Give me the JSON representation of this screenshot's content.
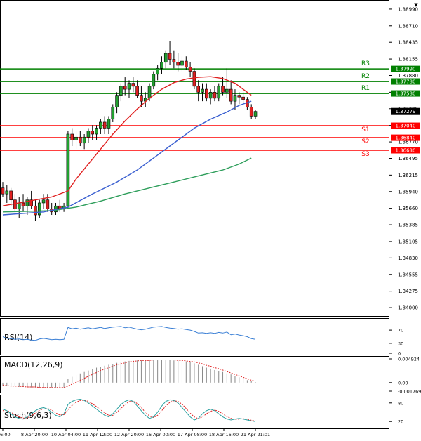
{
  "chart_data": {
    "type": "candlestick",
    "symbol_corner": "▼",
    "price_axis_ticks": [
      "1.38990",
      "1.38710",
      "1.38435",
      "1.38155",
      "1.37880",
      "1.37600",
      "1.37325",
      "1.37045",
      "1.36770",
      "1.36495",
      "1.36215",
      "1.35940",
      "1.35660",
      "1.35385",
      "1.35105",
      "1.34830",
      "1.34555",
      "1.34275",
      "1.34000"
    ],
    "price_axis_range": [
      1.3386,
      1.3913
    ],
    "time_axis_ticks": [
      "6:00",
      "8 Apr 20:00",
      "10 Apr 04:00",
      "11 Apr 12:00",
      "12 Apr 20:00",
      "16 Apr 00:00",
      "17 Apr 08:00",
      "18 Apr 16:00",
      "21 Apr 21:01"
    ],
    "current_price": "1.37279",
    "levels": [
      {
        "name": "R3",
        "value": 1.3799,
        "label": "1.37990",
        "color": "#008000"
      },
      {
        "name": "R2",
        "value": 1.3778,
        "label": "1.37780",
        "color": "#008000"
      },
      {
        "name": "R1",
        "value": 1.3758,
        "label": "1.37580",
        "color": "#008000"
      },
      {
        "name": "S1",
        "value": 1.3704,
        "label": "1.37040",
        "color": "#ff0000"
      },
      {
        "name": "S2",
        "value": 1.3684,
        "label": "1.36840",
        "color": "#ff0000"
      },
      {
        "name": "S3",
        "value": 1.3663,
        "label": "1.36630",
        "color": "#ff0000"
      }
    ],
    "candles": [
      [
        1.36,
        1.361,
        1.3585,
        1.359
      ],
      [
        1.359,
        1.3605,
        1.3575,
        1.3595
      ],
      [
        1.3595,
        1.36,
        1.357,
        1.358
      ],
      [
        1.358,
        1.359,
        1.356,
        1.3565
      ],
      [
        1.3565,
        1.3585,
        1.355,
        1.3575
      ],
      [
        1.3575,
        1.359,
        1.356,
        1.357
      ],
      [
        1.357,
        1.3585,
        1.3555,
        1.358
      ],
      [
        1.358,
        1.3595,
        1.3565,
        1.357
      ],
      [
        1.357,
        1.358,
        1.3545,
        1.3555
      ],
      [
        1.3555,
        1.358,
        1.355,
        1.3575
      ],
      [
        1.3575,
        1.359,
        1.3565,
        1.358
      ],
      [
        1.358,
        1.359,
        1.356,
        1.3565
      ],
      [
        1.3565,
        1.3575,
        1.3555,
        1.356
      ],
      [
        1.356,
        1.3575,
        1.3555,
        1.357
      ],
      [
        1.357,
        1.358,
        1.356,
        1.3565
      ],
      [
        1.3565,
        1.3575,
        1.356,
        1.357
      ],
      [
        1.357,
        1.3695,
        1.3565,
        1.369
      ],
      [
        1.369,
        1.37,
        1.367,
        1.368
      ],
      [
        1.368,
        1.3695,
        1.3665,
        1.3685
      ],
      [
        1.3685,
        1.3695,
        1.367,
        1.3675
      ],
      [
        1.3675,
        1.369,
        1.3665,
        1.3685
      ],
      [
        1.3685,
        1.37,
        1.3675,
        1.3695
      ],
      [
        1.3695,
        1.3705,
        1.368,
        1.369
      ],
      [
        1.369,
        1.3705,
        1.368,
        1.37
      ],
      [
        1.37,
        1.3715,
        1.369,
        1.371
      ],
      [
        1.371,
        1.372,
        1.369,
        1.37
      ],
      [
        1.37,
        1.372,
        1.369,
        1.3715
      ],
      [
        1.3715,
        1.374,
        1.371,
        1.3735
      ],
      [
        1.3735,
        1.376,
        1.3725,
        1.3755
      ],
      [
        1.3755,
        1.3775,
        1.3745,
        1.377
      ],
      [
        1.377,
        1.3785,
        1.3755,
        1.3765
      ],
      [
        1.3765,
        1.378,
        1.375,
        1.3775
      ],
      [
        1.3775,
        1.3785,
        1.376,
        1.377
      ],
      [
        1.377,
        1.378,
        1.375,
        1.3755
      ],
      [
        1.3755,
        1.377,
        1.3735,
        1.3745
      ],
      [
        1.3745,
        1.376,
        1.3735,
        1.375
      ],
      [
        1.375,
        1.3775,
        1.3745,
        1.377
      ],
      [
        1.377,
        1.3795,
        1.3765,
        1.379
      ],
      [
        1.379,
        1.3805,
        1.378,
        1.38
      ],
      [
        1.38,
        1.382,
        1.379,
        1.381
      ],
      [
        1.381,
        1.383,
        1.38,
        1.3825
      ],
      [
        1.3825,
        1.3845,
        1.3805,
        1.3815
      ],
      [
        1.3815,
        1.383,
        1.38,
        1.381
      ],
      [
        1.381,
        1.3825,
        1.3795,
        1.3805
      ],
      [
        1.3805,
        1.382,
        1.3795,
        1.3812
      ],
      [
        1.3812,
        1.382,
        1.3798,
        1.3802
      ],
      [
        1.3802,
        1.381,
        1.3785,
        1.3795
      ],
      [
        1.3795,
        1.38,
        1.3765,
        1.377
      ],
      [
        1.377,
        1.378,
        1.3745,
        1.376
      ],
      [
        1.376,
        1.3775,
        1.3745,
        1.3765
      ],
      [
        1.3765,
        1.3775,
        1.3745,
        1.375
      ],
      [
        1.375,
        1.3765,
        1.374,
        1.376
      ],
      [
        1.376,
        1.377,
        1.3745,
        1.375
      ],
      [
        1.375,
        1.3775,
        1.3745,
        1.377
      ],
      [
        1.377,
        1.3785,
        1.3755,
        1.376
      ],
      [
        1.376,
        1.38,
        1.375,
        1.3765
      ],
      [
        1.3765,
        1.378,
        1.374,
        1.3745
      ],
      [
        1.3745,
        1.3765,
        1.373,
        1.3755
      ],
      [
        1.3755,
        1.376,
        1.374,
        1.3752
      ],
      [
        1.3752,
        1.376,
        1.374,
        1.3748
      ],
      [
        1.3748,
        1.3752,
        1.373,
        1.3735
      ],
      [
        1.3735,
        1.374,
        1.3715,
        1.372
      ],
      [
        1.372,
        1.373,
        1.3715,
        1.3728
      ]
    ],
    "ma_red": [
      [
        1.357,
        0
      ],
      [
        1.3585,
        12
      ],
      [
        1.3595,
        16
      ],
      [
        1.3615,
        18
      ],
      [
        1.364,
        21
      ],
      [
        1.3665,
        24
      ],
      [
        1.369,
        27
      ],
      [
        1.3712,
        30
      ],
      [
        1.3732,
        33
      ],
      [
        1.375,
        36
      ],
      [
        1.3765,
        39
      ],
      [
        1.3776,
        42
      ],
      [
        1.3782,
        45
      ],
      [
        1.3785,
        48
      ],
      [
        1.3786,
        51
      ],
      [
        1.3783,
        54
      ],
      [
        1.3775,
        57
      ],
      [
        1.376,
        60
      ],
      [
        1.3755,
        61
      ]
    ],
    "ma_blue": [
      [
        1.3555,
        0
      ],
      [
        1.356,
        10
      ],
      [
        1.3568,
        16
      ],
      [
        1.359,
        22
      ],
      [
        1.361,
        28
      ],
      [
        1.363,
        33
      ],
      [
        1.3655,
        38
      ],
      [
        1.368,
        43
      ],
      [
        1.37,
        47
      ],
      [
        1.3715,
        51
      ],
      [
        1.3727,
        55
      ],
      [
        1.3738,
        58
      ],
      [
        1.3745,
        61
      ]
    ],
    "ma_green": [
      [
        1.356,
        0
      ],
      [
        1.3562,
        12
      ],
      [
        1.3568,
        18
      ],
      [
        1.3578,
        24
      ],
      [
        1.359,
        30
      ],
      [
        1.36,
        36
      ],
      [
        1.361,
        42
      ],
      [
        1.362,
        48
      ],
      [
        1.363,
        54
      ],
      [
        1.364,
        58
      ],
      [
        1.365,
        61
      ]
    ],
    "rsi": {
      "label": "RSI(14)",
      "ticks": [
        "70",
        "30",
        "0"
      ],
      "range": [
        0,
        100
      ],
      "values": [
        50,
        45,
        44,
        42,
        43,
        41,
        42,
        40,
        39,
        43,
        45,
        43,
        41,
        42,
        41,
        42,
        78,
        74,
        76,
        73,
        75,
        77,
        74,
        76,
        78,
        75,
        77,
        79,
        80,
        81,
        77,
        79,
        76,
        73,
        71,
        73,
        76,
        79,
        80,
        81,
        78,
        76,
        75,
        73,
        74,
        72,
        70,
        66,
        61,
        62,
        60,
        62,
        60,
        63,
        61,
        64,
        56,
        58,
        55,
        53,
        50,
        44,
        42
      ]
    },
    "macd": {
      "label": "MACD(12,26,9)",
      "ticks": [
        "0.004924",
        "0.00",
        "-0.001769"
      ],
      "range": [
        -0.001769,
        0.004924
      ],
      "hist": [
        -0.0006,
        -0.0007,
        -0.0008,
        -0.0008,
        -0.0009,
        -0.0009,
        -0.0009,
        -0.001,
        -0.001,
        -0.001,
        -0.001,
        -0.001,
        -0.001,
        -0.001,
        -0.001,
        -0.001,
        0.0008,
        0.0012,
        0.0016,
        0.0019,
        0.0022,
        0.0025,
        0.0028,
        0.0031,
        0.0033,
        0.0035,
        0.0037,
        0.0039,
        0.0041,
        0.0043,
        0.0044,
        0.0045,
        0.0046,
        0.0046,
        0.0046,
        0.0046,
        0.0046,
        0.0047,
        0.0047,
        0.0047,
        0.0047,
        0.0047,
        0.0046,
        0.0046,
        0.0045,
        0.0044,
        0.0042,
        0.004,
        0.0037,
        0.0034,
        0.0031,
        0.0029,
        0.0026,
        0.0024,
        0.0022,
        0.0019,
        0.0017,
        0.0014,
        0.0011,
        0.0008,
        0.0005,
        0.0003,
        0.0001
      ],
      "signal": [
        -0.0005,
        -0.0006,
        -0.0007,
        -0.0007,
        -0.0008,
        -0.0008,
        -0.0009,
        -0.0009,
        -0.0009,
        -0.001,
        -0.001,
        -0.001,
        -0.001,
        -0.001,
        -0.001,
        -0.001,
        -0.0007,
        -0.0003,
        0.0001,
        0.0005,
        0.0009,
        0.0013,
        0.0017,
        0.0021,
        0.0025,
        0.0028,
        0.0031,
        0.0034,
        0.0037,
        0.0039,
        0.0041,
        0.0043,
        0.0044,
        0.0045,
        0.0046,
        0.0046,
        0.0046,
        0.0047,
        0.0047,
        0.0047,
        0.0047,
        0.0047,
        0.0047,
        0.0046,
        0.0046,
        0.0045,
        0.0044,
        0.0043,
        0.0041,
        0.0039,
        0.0036,
        0.0034,
        0.0031,
        0.0029,
        0.0026,
        0.0023,
        0.002,
        0.0017,
        0.0014,
        0.0011,
        0.0008,
        0.0005,
        0.0003
      ]
    },
    "stoch": {
      "label": "Stoch(9,6,3)",
      "ticks": [
        "80",
        "20"
      ],
      "range": [
        0,
        100
      ],
      "main": [
        60,
        55,
        45,
        35,
        30,
        28,
        35,
        45,
        55,
        62,
        65,
        60,
        50,
        40,
        35,
        45,
        75,
        85,
        90,
        92,
        88,
        80,
        70,
        60,
        50,
        40,
        35,
        45,
        60,
        75,
        85,
        90,
        85,
        70,
        55,
        40,
        30,
        35,
        50,
        70,
        85,
        90,
        88,
        80,
        65,
        50,
        35,
        25,
        30,
        45,
        55,
        60,
        55,
        45,
        35,
        28,
        25,
        28,
        30,
        28,
        25,
        22,
        20
      ],
      "signal": [
        55,
        56,
        50,
        42,
        35,
        31,
        32,
        38,
        48,
        56,
        61,
        62,
        57,
        48,
        41,
        42,
        58,
        72,
        82,
        88,
        89,
        85,
        77,
        68,
        58,
        48,
        40,
        40,
        50,
        62,
        75,
        84,
        86,
        78,
        65,
        50,
        38,
        33,
        40,
        55,
        70,
        82,
        87,
        85,
        76,
        62,
        47,
        35,
        29,
        35,
        45,
        53,
        57,
        53,
        45,
        36,
        30,
        27,
        28,
        29,
        27,
        24,
        22
      ]
    }
  }
}
